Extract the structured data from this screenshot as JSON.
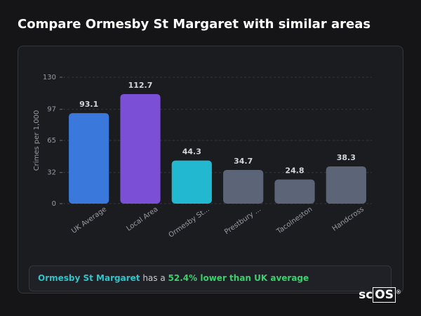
{
  "chart_data": {
    "type": "bar",
    "title": "Compare Ormesby St Margaret with similar areas",
    "y_label": "Crimes per 1,000",
    "categories": [
      "UK Average",
      "Local Area",
      "Ormesby St...",
      "Prestbury ...",
      "Tacolneston",
      "Handcross"
    ],
    "values": [
      93.1,
      112.7,
      44.3,
      34.7,
      24.8,
      38.3
    ],
    "colors": [
      "#3b78dc",
      "#7b4fd6",
      "#22b8cf",
      "#5c6577",
      "#5c6577",
      "#5c6577"
    ],
    "ylim": [
      0,
      130
    ],
    "yticks": [
      0,
      32,
      65,
      97,
      130
    ],
    "grid": true
  },
  "footer": {
    "area": "Ormesby St Margaret",
    "text": "has a",
    "comparison": "52.4% lower than UK average"
  },
  "logo": {
    "prefix": "sc",
    "boxed": "OS",
    "mark": "®"
  }
}
